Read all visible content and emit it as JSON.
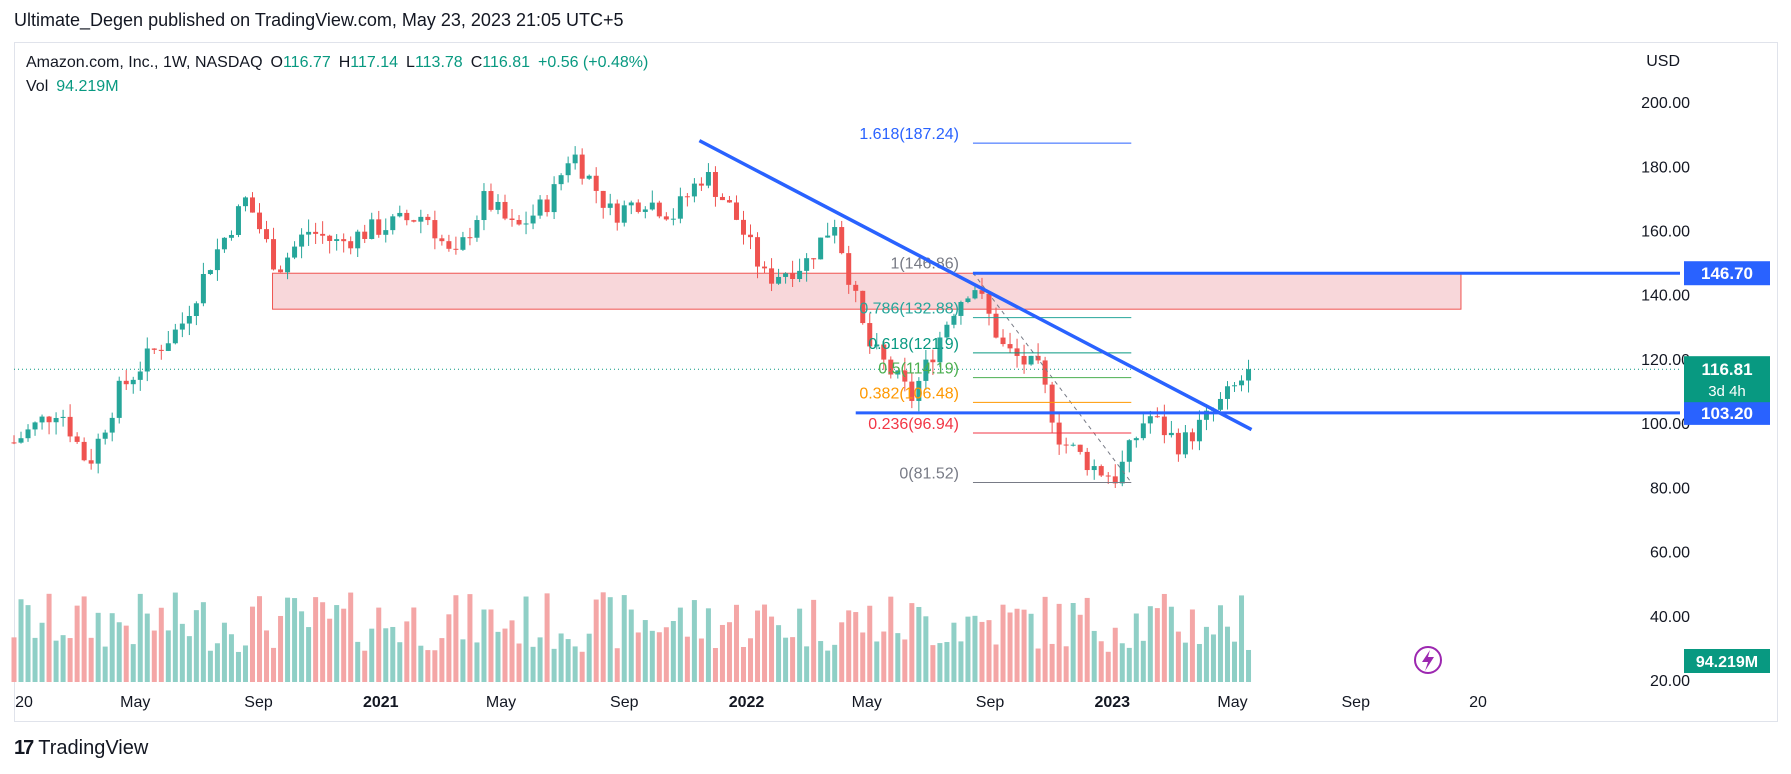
{
  "header": {
    "published": "Ultimate_Degen published on TradingView.com, May 23, 2023 21:05 UTC+5"
  },
  "legend": {
    "symbol": "Amazon.com, Inc., 1W, NASDAQ",
    "open_label": "O",
    "open": "116.77",
    "high_label": "H",
    "high": "117.14",
    "low_label": "L",
    "low": "113.78",
    "close_label": "C",
    "close": "116.81",
    "change": "+0.56 (+0.48%)",
    "vol_label": "Vol",
    "vol": "94.219M"
  },
  "footer": {
    "brand": "TradingView"
  },
  "colors": {
    "up": "#26a69a",
    "down": "#ef5350",
    "up_vol": "#8fcfc6",
    "down_vol": "#f4a6a6",
    "trendline": "#2962ff",
    "zone_fill": "#f8d7da",
    "zone_border": "#ef5350",
    "price_tag": "#089981",
    "level_tag": "#2962ff"
  },
  "chart_data": {
    "type": "candlestick",
    "currency_label": "USD",
    "y_ticks": [
      "200.00",
      "180.00",
      "160.00",
      "140.00",
      "120.00",
      "100.00",
      "80.00",
      "60.00",
      "40.00",
      "20.00"
    ],
    "x_ticks": [
      {
        "label": "20",
        "date": "2020-01-01"
      },
      {
        "label": "May",
        "date": "2020-05-01"
      },
      {
        "label": "Sep",
        "date": "2020-09-01"
      },
      {
        "label": "2021",
        "date": "2021-01-01"
      },
      {
        "label": "May",
        "date": "2021-05-01"
      },
      {
        "label": "Sep",
        "date": "2021-09-01"
      },
      {
        "label": "2022",
        "date": "2022-01-01"
      },
      {
        "label": "May",
        "date": "2022-05-01"
      },
      {
        "label": "Sep",
        "date": "2022-09-01"
      },
      {
        "label": "2023",
        "date": "2023-01-01"
      },
      {
        "label": "May",
        "date": "2023-05-01"
      },
      {
        "label": "Sep",
        "date": "2023-09-01"
      },
      {
        "label": "20",
        "date": "2024-01-01"
      }
    ],
    "y_range": [
      20,
      210
    ],
    "x_range": [
      "2020-01-01",
      "2024-01-01"
    ],
    "price_path": [
      [
        "2020-01-01",
        94
      ],
      [
        "2020-02-15",
        105
      ],
      [
        "2020-03-15",
        87
      ],
      [
        "2020-04-15",
        110
      ],
      [
        "2020-05-15",
        121
      ],
      [
        "2020-06-15",
        130
      ],
      [
        "2020-07-15",
        150
      ],
      [
        "2020-08-20",
        170
      ],
      [
        "2020-09-20",
        148
      ],
      [
        "2020-10-20",
        160
      ],
      [
        "2020-11-20",
        156
      ],
      [
        "2020-12-20",
        160
      ],
      [
        "2021-02-15",
        165
      ],
      [
        "2021-03-15",
        150
      ],
      [
        "2021-04-15",
        170
      ],
      [
        "2021-05-15",
        160
      ],
      [
        "2021-06-20",
        170
      ],
      [
        "2021-07-10",
        185
      ],
      [
        "2021-08-20",
        165
      ],
      [
        "2021-09-20",
        170
      ],
      [
        "2021-10-20",
        165
      ],
      [
        "2021-11-20",
        178
      ],
      [
        "2021-12-20",
        165
      ],
      [
        "2022-01-20",
        145
      ],
      [
        "2022-03-01",
        150
      ],
      [
        "2022-03-30",
        163
      ],
      [
        "2022-05-01",
        125
      ],
      [
        "2022-06-15",
        108
      ],
      [
        "2022-07-25",
        135
      ],
      [
        "2022-08-15",
        144
      ],
      [
        "2022-09-15",
        123
      ],
      [
        "2022-10-20",
        116
      ],
      [
        "2022-11-10",
        95
      ],
      [
        "2022-12-15",
        86
      ],
      [
        "2023-01-05",
        83
      ],
      [
        "2023-02-05",
        103
      ],
      [
        "2023-03-10",
        93
      ],
      [
        "2023-04-10",
        103
      ],
      [
        "2023-05-20",
        116.81
      ]
    ],
    "volume_scale_label": "94.219M",
    "support_zone": {
      "low": 135.5,
      "high": 146.7,
      "from": "2020-09-15",
      "to": "2023-12-15"
    },
    "levels": [
      {
        "value": 146.7,
        "label": "146.70"
      },
      {
        "value": 103.2,
        "label": "103.20"
      }
    ],
    "current_price": {
      "value": 116.81,
      "label": "116.81",
      "countdown": "3d 4h"
    },
    "trendline": {
      "from": {
        "date": "2021-11-15",
        "price": 188
      },
      "to": {
        "date": "2023-05-20",
        "price": 98
      }
    },
    "fibonacci": {
      "from": "2022-08-15",
      "to": "2023-01-20",
      "levels": [
        {
          "ratio": "1.618",
          "value": 187.24,
          "label": "1.618(187.24)",
          "color": "#2962ff"
        },
        {
          "ratio": "1",
          "value": 146.86,
          "label": "1(146.86)",
          "color": "#787b86"
        },
        {
          "ratio": "0.786",
          "value": 132.88,
          "label": "0.786(132.88)",
          "color": "#26a69a"
        },
        {
          "ratio": "0.618",
          "value": 121.9,
          "label": "0.618(121.9)",
          "color": "#089981"
        },
        {
          "ratio": "0.5",
          "value": 114.19,
          "label": "0.5(114.19)",
          "color": "#4caf50"
        },
        {
          "ratio": "0.382",
          "value": 106.48,
          "label": "0.382(106.48)",
          "color": "#ff9800"
        },
        {
          "ratio": "0.236",
          "value": 96.94,
          "label": "0.236(96.94)",
          "color": "#f23645"
        },
        {
          "ratio": "0",
          "value": 81.52,
          "label": "0(81.52)",
          "color": "#787b86"
        }
      ]
    }
  }
}
